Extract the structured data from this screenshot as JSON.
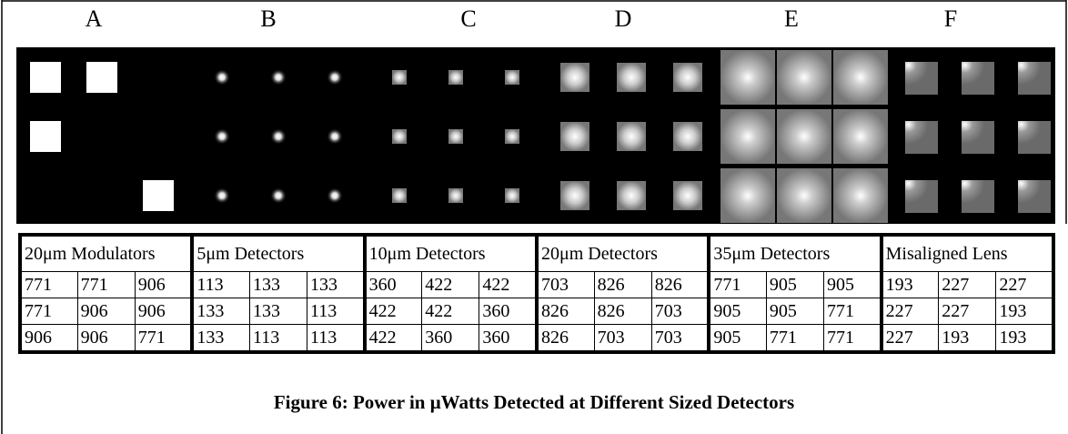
{
  "panels": [
    "A",
    "B",
    "C",
    "D",
    "E",
    "F"
  ],
  "table": {
    "headers": [
      "20μm Modulators",
      "5μm Detectors",
      "10μm Detectors",
      "20μm Detectors",
      "35μm Detectors",
      "Misaligned Lens"
    ],
    "rows": [
      [
        771,
        771,
        906,
        113,
        133,
        133,
        360,
        422,
        422,
        703,
        826,
        826,
        771,
        905,
        905,
        193,
        227,
        227
      ],
      [
        771,
        906,
        906,
        133,
        133,
        113,
        422,
        422,
        360,
        826,
        826,
        703,
        905,
        905,
        771,
        227,
        227,
        193
      ],
      [
        906,
        906,
        771,
        133,
        113,
        113,
        422,
        360,
        360,
        826,
        703,
        703,
        905,
        771,
        771,
        227,
        193,
        193
      ]
    ]
  },
  "caption": "Figure 6: Power in μWatts Detected at Different Sized Detectors"
}
